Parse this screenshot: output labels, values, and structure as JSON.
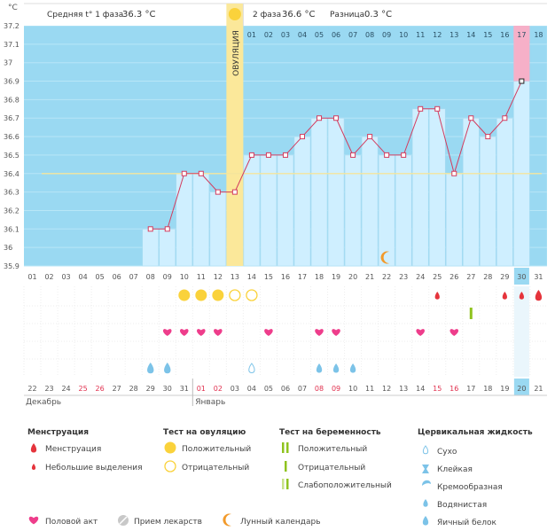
{
  "chart_data": {
    "type": "line",
    "title": "",
    "unit_label": "°C",
    "y_ticks": [
      "37.2",
      "37.1",
      "37",
      "36.9",
      "36.8",
      "36.7",
      "36.6",
      "36.5",
      "36.4",
      "36.3",
      "36.2",
      "36.1",
      "36",
      "35.9"
    ],
    "ylim": [
      35.9,
      37.2
    ],
    "cycle_days": [
      "01",
      "02",
      "03",
      "04",
      "05",
      "06",
      "07",
      "08",
      "09",
      "10",
      "11",
      "12",
      "13",
      "14",
      "15",
      "16",
      "17",
      "18",
      "19",
      "20",
      "21",
      "22",
      "23",
      "24",
      "25",
      "26",
      "27",
      "28",
      "29",
      "30",
      "31"
    ],
    "phase2_header_days": [
      "01",
      "02",
      "03",
      "04",
      "05",
      "06",
      "07",
      "08",
      "09",
      "10",
      "11",
      "12",
      "13",
      "14",
      "15",
      "16",
      "17",
      "18"
    ],
    "series": [
      {
        "x": [
          8,
          9,
          10,
          11,
          12,
          13,
          14,
          15,
          16,
          17,
          18,
          19,
          20,
          21,
          22,
          23,
          24,
          25,
          26,
          27,
          28,
          29,
          30
        ],
        "values": [
          36.1,
          36.1,
          36.4,
          36.4,
          36.3,
          36.3,
          36.5,
          36.5,
          36.5,
          36.6,
          36.7,
          36.7,
          36.5,
          36.6,
          36.5,
          36.5,
          36.75,
          36.75,
          36.4,
          36.7,
          36.6,
          36.7,
          36.9
        ]
      }
    ],
    "coverline": 36.4,
    "ovulation_day": 13,
    "today_day": 30,
    "phase1_avg_label": "Средняя t° 1 фаза",
    "phase1_avg_value": "36.3 °C",
    "phase2_avg_label": "2 фаза",
    "phase2_avg_value": "36.6 °C",
    "diff_label": "Разница",
    "diff_value": "0.3 °C",
    "ovulation_label": "ОВУЛЯЦИЯ"
  },
  "calendar": {
    "dates": [
      "22",
      "23",
      "24",
      "25",
      "26",
      "27",
      "28",
      "29",
      "30",
      "31",
      "01",
      "02",
      "03",
      "04",
      "05",
      "06",
      "07",
      "08",
      "09",
      "10",
      "11",
      "12",
      "13",
      "14",
      "15",
      "16",
      "17",
      "18",
      "19",
      "20",
      "21"
    ],
    "red_dates": [
      4,
      5,
      11,
      12,
      18,
      19,
      25,
      26
    ],
    "month_dec": "Декабрь",
    "month_jan": "Январь"
  },
  "markers": {
    "moon": [
      22
    ],
    "menstruation_small": [
      25,
      29,
      30
    ],
    "menstruation": [
      31
    ],
    "ovulation_positive": [
      10,
      11,
      12
    ],
    "ovulation_negative": [
      13,
      14
    ],
    "pregnancy_negative": [
      27
    ],
    "intercourse": [
      9,
      10,
      11,
      12,
      15,
      18,
      19,
      24,
      26
    ],
    "cervical_dry": [
      14
    ],
    "cervical_watery": [
      18,
      19,
      20
    ],
    "cervical_eggwhite": [
      8,
      9
    ]
  },
  "legend": {
    "menstruation": {
      "title": "Менструация",
      "items": [
        "Менструация",
        "Небольшие выделения"
      ]
    },
    "ovulation": {
      "title": "Тест на овуляцию",
      "items": [
        "Положительный",
        "Отрицательный"
      ]
    },
    "pregnancy": {
      "title": "Тест на беременность",
      "items": [
        "Положительный",
        "Отрицательный",
        "Слабоположительный"
      ]
    },
    "cervical": {
      "title": "Цервикальная жидкость",
      "items": [
        "Сухо",
        "Клейкая",
        "Кремообразная",
        "Водянистая",
        "Яичный белок"
      ]
    },
    "bottom": [
      "Половой акт",
      "Прием лекарств",
      "Лунный календарь"
    ]
  },
  "colors": {
    "sky": "#9ad9f2",
    "cell": "#cfefff",
    "line": "#d33c5e",
    "ovulation": "#fbe89a",
    "today": "#9ad9f2",
    "pink_column": "#f6b0c8",
    "heart": "#ee3d8b",
    "blood": "#e5343c",
    "drop": "#7cc3e8",
    "ov_yellow": "#fad23b",
    "preg_green": "#8fc31f"
  }
}
